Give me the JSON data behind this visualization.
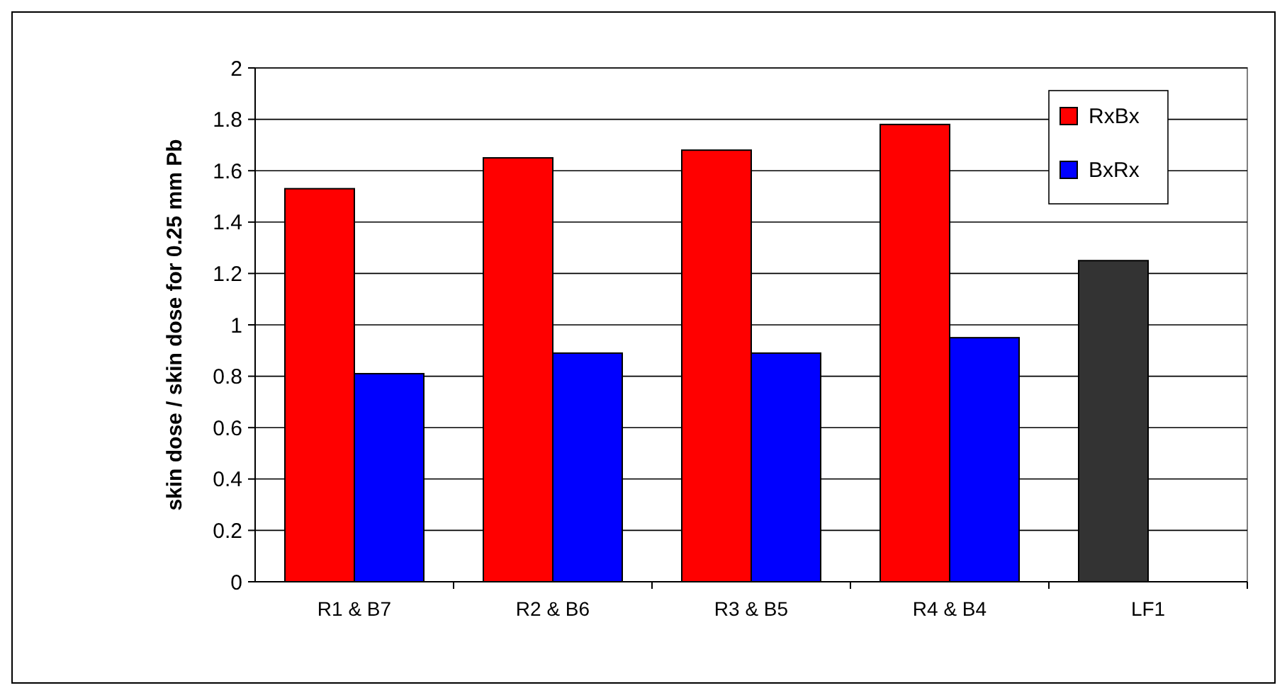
{
  "chart_data": {
    "type": "bar",
    "ylabel": "skin dose / skin dose for 0.25 mm Pb",
    "categories": [
      "R1 & B7",
      "R2 & B6",
      "R3 & B5",
      "R4 & B4",
      "LF1"
    ],
    "series": [
      {
        "name": "RxBx",
        "color": "#ff0000",
        "colors": [
          "#ff0000",
          "#ff0000",
          "#ff0000",
          "#ff0000",
          "#333333"
        ],
        "values": [
          1.53,
          1.65,
          1.68,
          1.78,
          1.25
        ]
      },
      {
        "name": "BxRx",
        "color": "#0000ff",
        "values": [
          0.81,
          0.89,
          0.89,
          0.95,
          null
        ]
      }
    ],
    "ylim": [
      0,
      2
    ],
    "yticks": [
      0,
      0.2,
      0.4,
      0.6,
      0.8,
      1,
      1.2,
      1.4,
      1.6,
      1.8,
      2
    ],
    "grid": "y",
    "legend": "top right"
  }
}
